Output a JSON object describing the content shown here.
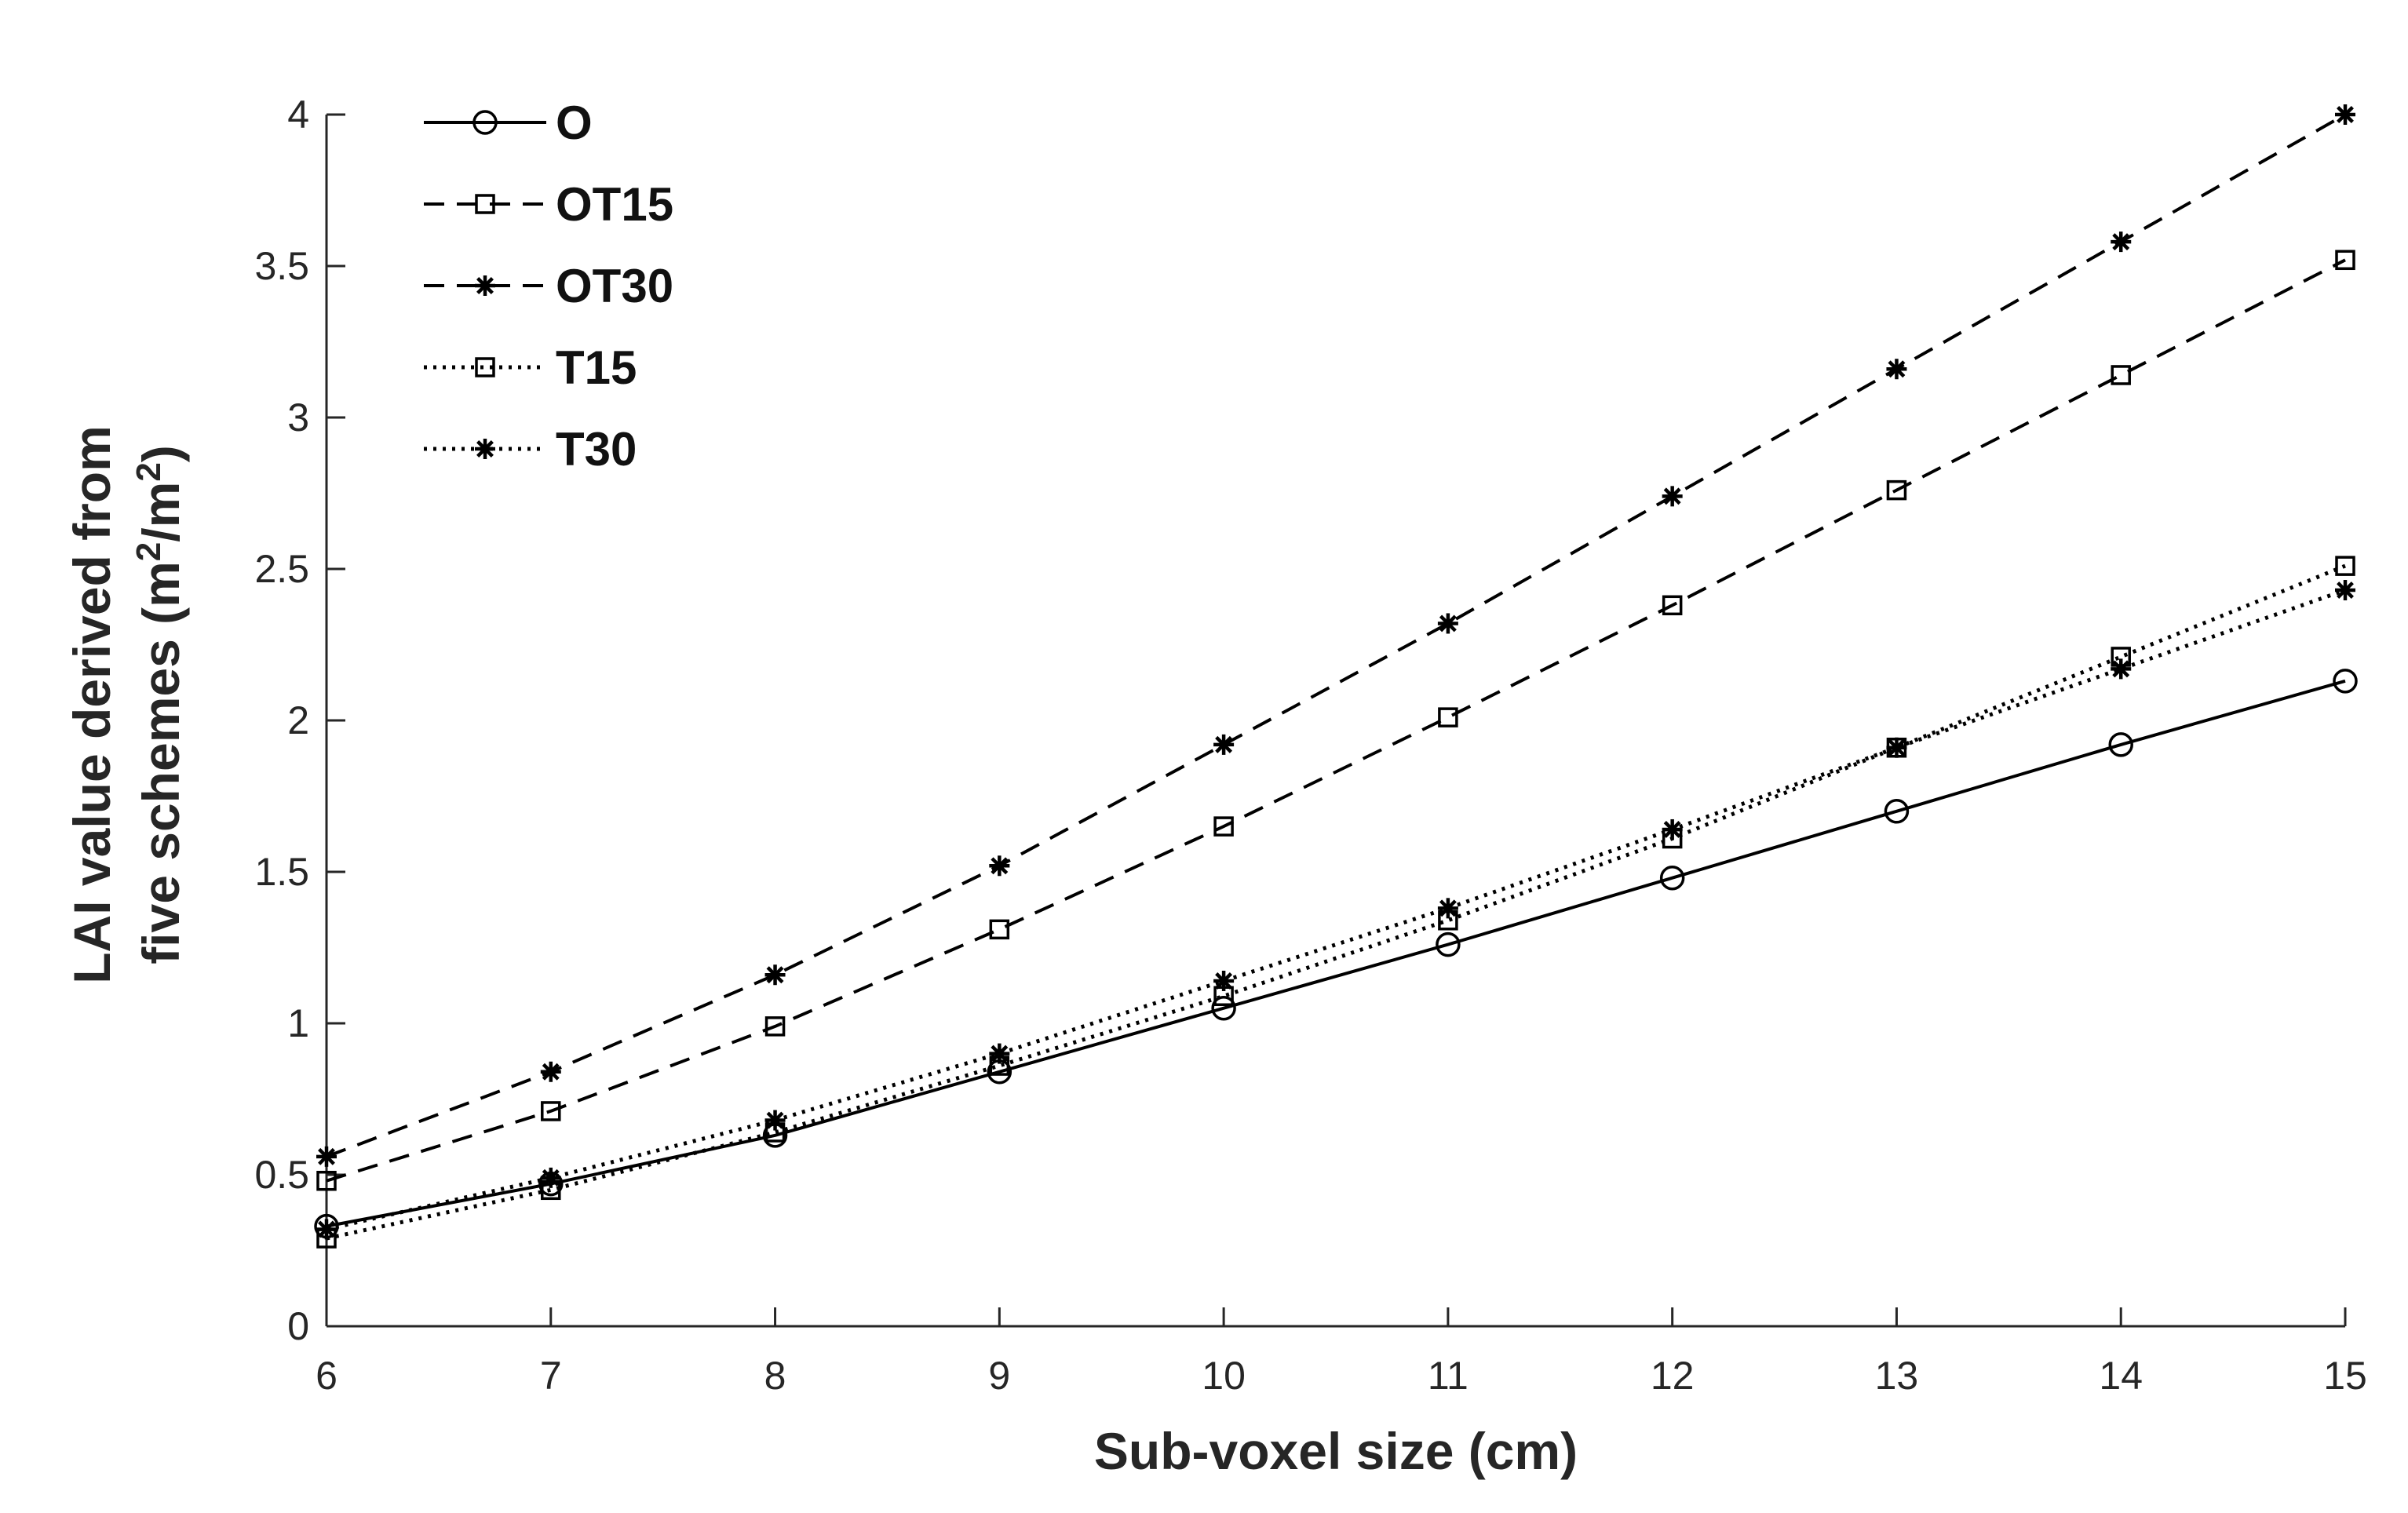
{
  "chart_data": {
    "type": "line",
    "title": "",
    "xlabel": "Sub-voxel size (cm)",
    "ylabel_line1": "LAI value derived from",
    "ylabel_line2_prefix": "five schemes (m",
    "ylabel_sup": "2",
    "ylabel_mid": "/m",
    "ylabel_suffix": ")",
    "xlim": [
      6,
      15
    ],
    "ylim": [
      0,
      4
    ],
    "xticks": [
      6,
      7,
      8,
      9,
      10,
      11,
      12,
      13,
      14,
      15
    ],
    "xtick_labels": [
      "6",
      "7",
      "8",
      "9",
      "10",
      "11",
      "12",
      "13",
      "14",
      "15"
    ],
    "yticks": [
      0,
      0.5,
      1,
      1.5,
      2,
      2.5,
      3,
      3.5,
      4
    ],
    "ytick_labels": [
      "0",
      "0.5",
      "1",
      "1.5",
      "2",
      "2.5",
      "3",
      "3.5",
      "4"
    ],
    "grid": false,
    "legend_position": "top-left",
    "x": [
      6,
      7,
      8,
      9,
      10,
      11,
      12,
      13,
      14,
      15
    ],
    "series": [
      {
        "name": "O",
        "marker": "circle",
        "linestyle": "solid",
        "values": [
          0.33,
          0.47,
          0.63,
          0.84,
          1.05,
          1.26,
          1.48,
          1.7,
          1.92,
          2.13
        ]
      },
      {
        "name": "OT15",
        "marker": "square",
        "linestyle": "dashed",
        "values": [
          0.48,
          0.71,
          0.99,
          1.31,
          1.65,
          2.01,
          2.38,
          2.76,
          3.14,
          3.52
        ]
      },
      {
        "name": "OT30",
        "marker": "asterisk",
        "linestyle": "dashed",
        "values": [
          0.56,
          0.84,
          1.16,
          1.52,
          1.92,
          2.32,
          2.74,
          3.16,
          3.58,
          4.0
        ]
      },
      {
        "name": "T15",
        "marker": "square",
        "linestyle": "dotted",
        "values": [
          0.29,
          0.45,
          0.64,
          0.86,
          1.09,
          1.34,
          1.61,
          1.91,
          2.21,
          2.51
        ]
      },
      {
        "name": "T30",
        "marker": "asterisk",
        "linestyle": "dotted",
        "values": [
          0.32,
          0.49,
          0.68,
          0.9,
          1.14,
          1.38,
          1.64,
          1.91,
          2.17,
          2.43
        ]
      }
    ]
  }
}
